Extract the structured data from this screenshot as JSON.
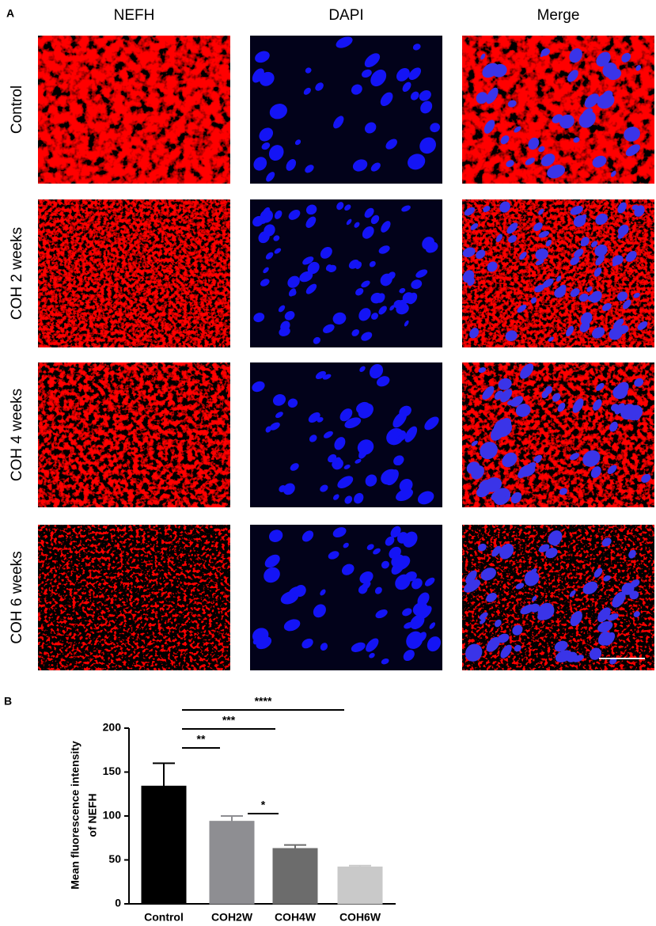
{
  "figure": {
    "panel_labels": [
      "A",
      "B"
    ],
    "columns": [
      "NEFH",
      "DAPI",
      "Merge"
    ],
    "rows": [
      "Control",
      "COH 2 weeks",
      "COH 4 weeks",
      "COH 6 weeks"
    ]
  },
  "chart_data": {
    "type": "bar",
    "ylabel": [
      "Mean fluorescence intensity",
      "of NEFH"
    ],
    "categories": [
      "Control",
      "COH2W",
      "COH4W",
      "COH6W"
    ],
    "values": [
      134,
      94,
      63,
      42
    ],
    "errors": [
      26,
      6,
      4,
      1.5
    ],
    "colors": [
      "#000000",
      "#8e8e92",
      "#6c6c6c",
      "#c9c9c9"
    ],
    "ylim": [
      0,
      200
    ],
    "yticks": [
      0,
      50,
      100,
      150,
      200
    ],
    "annotations": [
      "**",
      "***",
      "****",
      "*"
    ]
  }
}
